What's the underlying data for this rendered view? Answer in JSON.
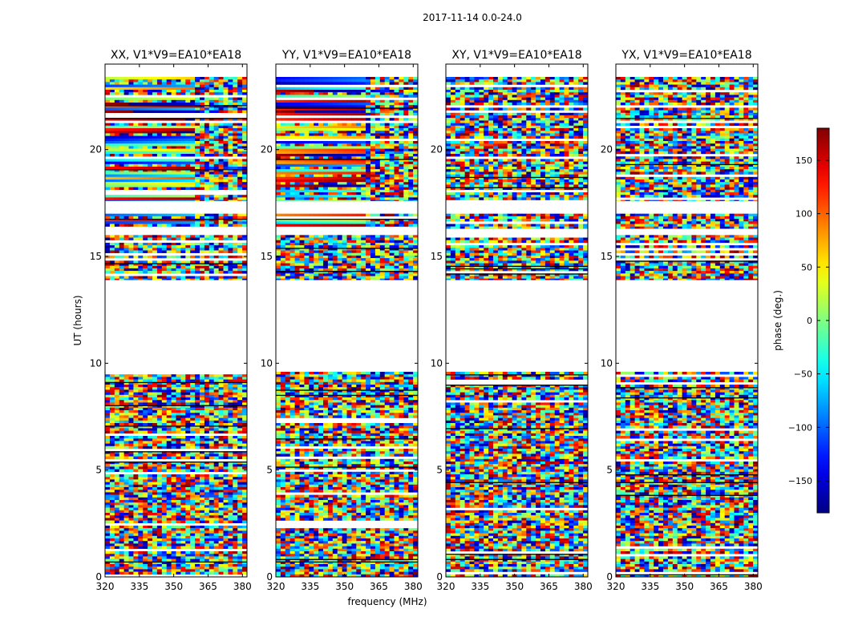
{
  "chart_data": {
    "type": "heatmap",
    "suptitle": "2017-11-14 0.0-24.0",
    "xlabel": "frequency (MHz)",
    "ylabel": "UT (hours)",
    "xlim": [
      320,
      382
    ],
    "ylim": [
      0,
      24
    ],
    "x_ticks": [
      320,
      335,
      350,
      365,
      380
    ],
    "y_ticks": [
      0,
      5,
      10,
      15,
      20
    ],
    "panels": [
      {
        "title": "XX, V1*V9=EA10*EA18",
        "polarization": "XX"
      },
      {
        "title": "YY, V1*V9=EA10*EA18",
        "polarization": "YY"
      },
      {
        "title": "XY, V1*V9=EA10*EA18",
        "polarization": "XY"
      },
      {
        "title": "YX, V1*V9=EA10*EA18",
        "polarization": "YX"
      }
    ],
    "colorbar": {
      "label": "phase (deg.)",
      "range": [
        -180,
        180
      ],
      "ticks": [
        -150,
        -100,
        -50,
        0,
        50,
        100,
        150
      ],
      "colormap": "jet"
    },
    "observed_ut_ranges": [
      [
        0.0,
        9.6
      ],
      [
        13.9,
        16.0
      ],
      [
        16.3,
        17.0
      ],
      [
        17.6,
        23.4
      ]
    ],
    "grid": false
  }
}
